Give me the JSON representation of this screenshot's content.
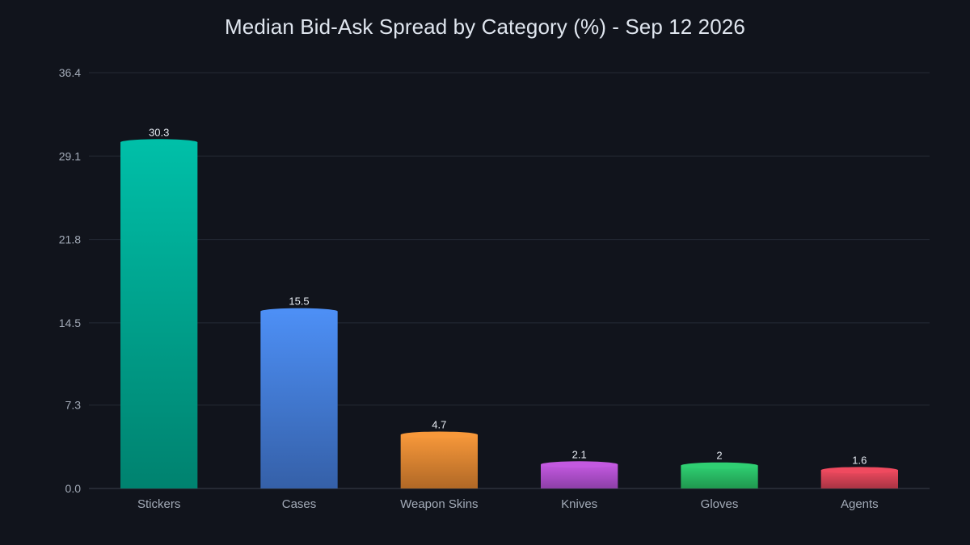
{
  "chart_data": {
    "type": "bar",
    "title": "Median Bid-Ask Spread by Category (%) - Sep 12 2026",
    "xlabel": "",
    "ylabel": "",
    "categories": [
      "Stickers",
      "Cases",
      "Weapon Skins",
      "Knives",
      "Gloves",
      "Agents"
    ],
    "values": [
      30.3,
      15.5,
      4.7,
      2.1,
      2,
      1.6
    ],
    "value_labels": [
      "30.3",
      "15.5",
      "4.7",
      "2.1",
      "2",
      "1.6"
    ],
    "ylim": [
      0,
      36.4
    ],
    "yticks": [
      0,
      7.3,
      14.5,
      21.8,
      29.1,
      36.4
    ],
    "ytick_labels": [
      "0.0",
      "7.3",
      "14.5",
      "21.8",
      "29.1",
      "36.4"
    ],
    "grid": true,
    "legend": "none",
    "colors": [
      {
        "top": "#00bfa8",
        "bottom": "#00826f"
      },
      {
        "top": "#4d8ff5",
        "bottom": "#3560a8"
      },
      {
        "top": "#f7983a",
        "bottom": "#b06826"
      },
      {
        "top": "#c359e0",
        "bottom": "#8d3fa8"
      },
      {
        "top": "#2fcf72",
        "bottom": "#20984f"
      },
      {
        "top": "#ef4a5f",
        "bottom": "#a83444"
      }
    ]
  },
  "theme": {
    "background": "#11141c",
    "grid": "#252a35",
    "axis": "#3a404c",
    "text": "#a3abb8",
    "title": "#dfe5ee"
  }
}
